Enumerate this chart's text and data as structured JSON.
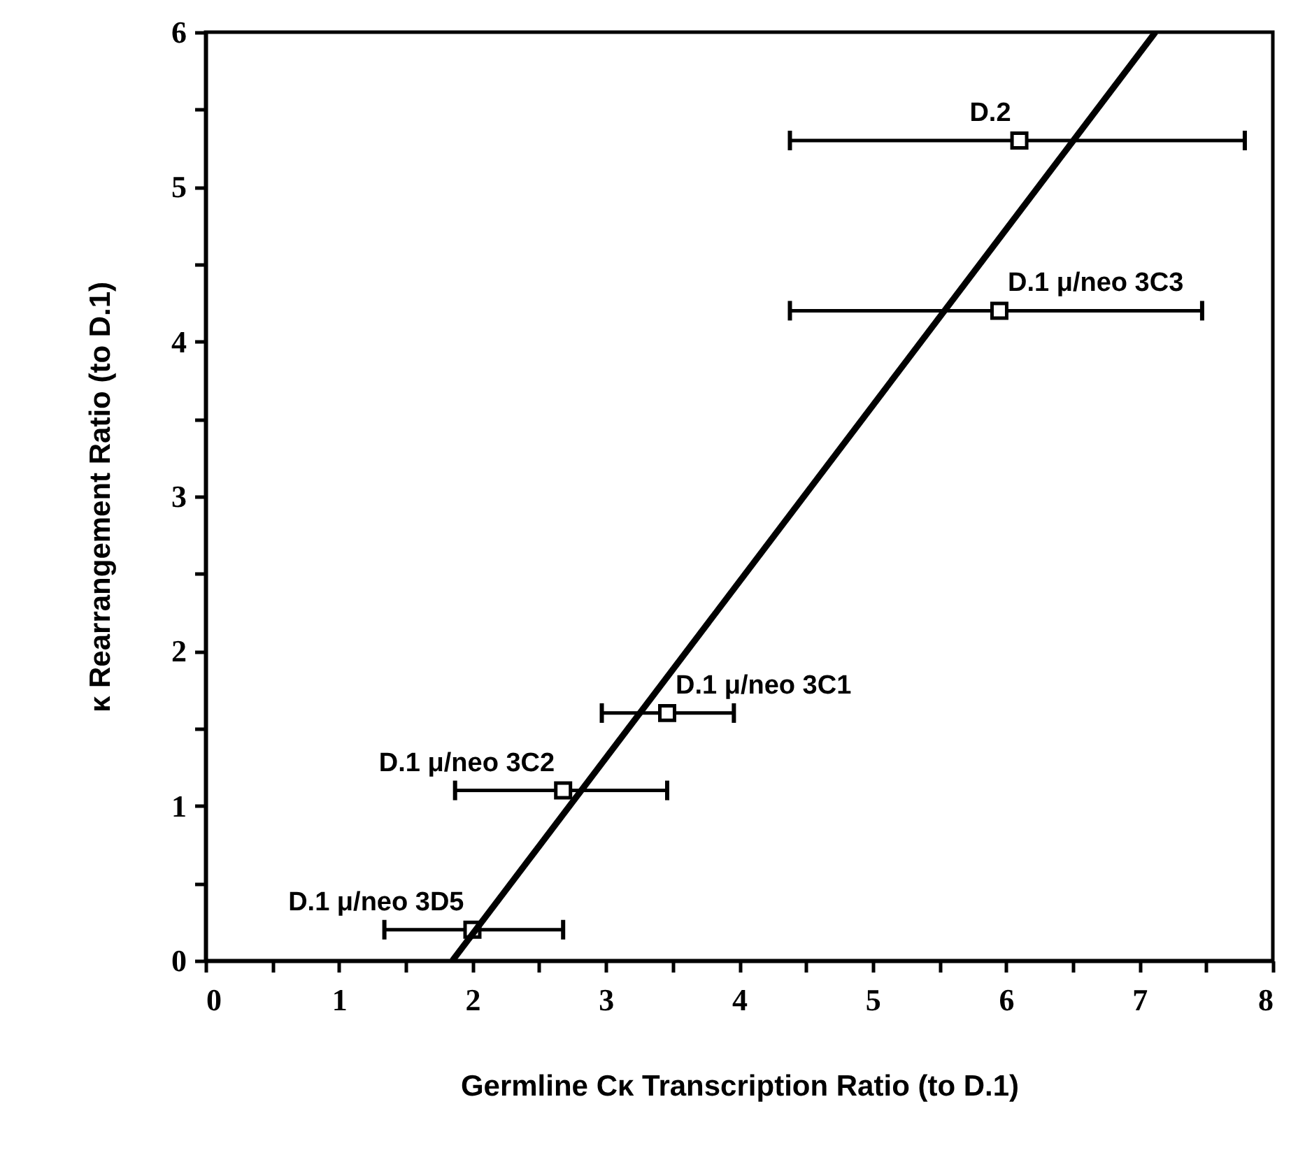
{
  "chart_data": {
    "type": "scatter",
    "xlabel": "Germline Cκ Transcription Ratio (to D.1)",
    "ylabel": "κ Rearrangement Ratio (to D.1)",
    "xlim": [
      0,
      8
    ],
    "ylim": [
      0,
      6
    ],
    "xticks": [
      0,
      {
        "value": 0.5,
        "label": null
      },
      1,
      {
        "value": 1.5,
        "label": null
      },
      2,
      {
        "value": 2.5,
        "label": null
      },
      3,
      {
        "value": 3.5,
        "label": null
      },
      4,
      {
        "value": 4.5,
        "label": null
      },
      5,
      {
        "value": 5.5,
        "label": null
      },
      6,
      {
        "value": 6.5,
        "label": null
      },
      7,
      {
        "value": 7.5,
        "label": null
      },
      8
    ],
    "yticks": [
      0,
      {
        "value": 0.5,
        "label": null
      },
      1,
      {
        "value": 1.5,
        "label": null
      },
      2,
      {
        "value": 2.5,
        "label": null
      },
      3,
      {
        "value": 3.5,
        "label": null
      },
      4,
      {
        "value": 4.5,
        "label": null
      },
      5,
      {
        "value": 5.5,
        "label": null
      },
      6
    ],
    "series": [
      {
        "color": "#000000",
        "marker": "square",
        "x": [
          6.1,
          5.95,
          3.46,
          2.68,
          2.0
        ],
        "values": [
          5.3,
          4.2,
          1.6,
          1.1,
          0.2
        ],
        "xerrors": [
          [
            4.38,
            7.79
          ],
          [
            4.38,
            7.47
          ],
          [
            2.97,
            3.96
          ],
          [
            1.87,
            3.46
          ],
          [
            1.34,
            2.68
          ]
        ]
      },
      {
        "type": "line",
        "color": "#000000",
        "line_style": "solid",
        "x": [
          1.85,
          7.12
        ],
        "values": [
          0,
          6
        ]
      }
    ],
    "annotations": [
      {
        "text": "D.2",
        "x": 6.1,
        "y": 5.3
      },
      {
        "text": "D.1 μ/neo 3C3",
        "x": 5.95,
        "y": 4.2
      },
      {
        "text": "D.1 μ/neo 3C1",
        "x": 3.46,
        "y": 1.6
      },
      {
        "text": "D.1 μ/neo 3C2",
        "x": 2.68,
        "y": 1.1
      },
      {
        "text": "D.1 μ/neo 3D5",
        "x": 2.0,
        "y": 0.2
      }
    ]
  }
}
